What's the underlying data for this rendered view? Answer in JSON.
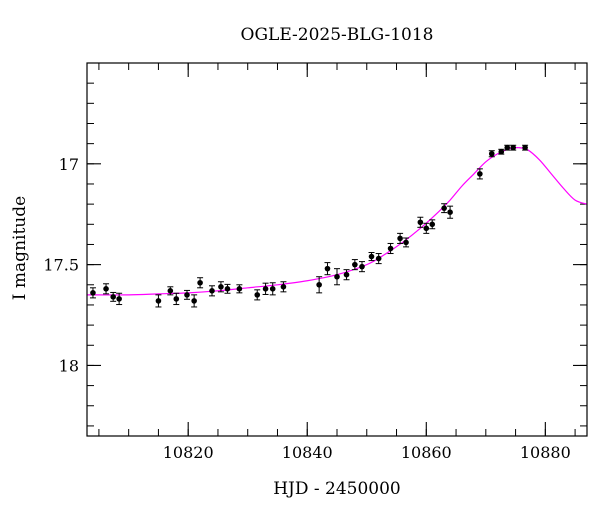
{
  "chart_data": {
    "type": "scatter",
    "title": "OGLE-2025-BLG-1018",
    "xlabel": "HJD - 2450000",
    "ylabel": "I magnitude",
    "xlim": [
      10803,
      10887
    ],
    "ylim": [
      18.35,
      16.5
    ],
    "y_inverted": true,
    "x_ticks": [
      10820,
      10840,
      10860,
      10880
    ],
    "x_tick_labels": [
      "10820",
      "10840",
      "10860",
      "10880"
    ],
    "x_minor_step": 5,
    "y_ticks": [
      17,
      17.5,
      18
    ],
    "y_tick_labels": [
      "17",
      "17.5",
      "18"
    ],
    "y_minor_step": 0.1,
    "grid": false,
    "colors": {
      "data": "#000000",
      "model": "#ff00ff",
      "frame": "#000000"
    },
    "series": [
      {
        "kind": "points-with-errorbars",
        "points": [
          {
            "x": 10804.0,
            "y": 17.64,
            "err": 0.025
          },
          {
            "x": 10806.2,
            "y": 17.62,
            "err": 0.025
          },
          {
            "x": 10807.4,
            "y": 17.66,
            "err": 0.022
          },
          {
            "x": 10808.4,
            "y": 17.67,
            "err": 0.028
          },
          {
            "x": 10815.0,
            "y": 17.68,
            "err": 0.03
          },
          {
            "x": 10817.0,
            "y": 17.63,
            "err": 0.02
          },
          {
            "x": 10818.0,
            "y": 17.67,
            "err": 0.028
          },
          {
            "x": 10819.8,
            "y": 17.65,
            "err": 0.022
          },
          {
            "x": 10821.0,
            "y": 17.68,
            "err": 0.03
          },
          {
            "x": 10822.0,
            "y": 17.59,
            "err": 0.025
          },
          {
            "x": 10824.0,
            "y": 17.63,
            "err": 0.025
          },
          {
            "x": 10825.5,
            "y": 17.61,
            "err": 0.025
          },
          {
            "x": 10826.6,
            "y": 17.62,
            "err": 0.022
          },
          {
            "x": 10828.6,
            "y": 17.62,
            "err": 0.02
          },
          {
            "x": 10831.6,
            "y": 17.65,
            "err": 0.025
          },
          {
            "x": 10833.0,
            "y": 17.62,
            "err": 0.028
          },
          {
            "x": 10834.2,
            "y": 17.62,
            "err": 0.03
          },
          {
            "x": 10836.0,
            "y": 17.61,
            "err": 0.025
          },
          {
            "x": 10842.0,
            "y": 17.6,
            "err": 0.04
          },
          {
            "x": 10843.4,
            "y": 17.52,
            "err": 0.03
          },
          {
            "x": 10845.0,
            "y": 17.56,
            "err": 0.04
          },
          {
            "x": 10846.6,
            "y": 17.55,
            "err": 0.025
          },
          {
            "x": 10848.0,
            "y": 17.5,
            "err": 0.025
          },
          {
            "x": 10849.2,
            "y": 17.51,
            "err": 0.025
          },
          {
            "x": 10850.8,
            "y": 17.46,
            "err": 0.02
          },
          {
            "x": 10852.0,
            "y": 17.47,
            "err": 0.025
          },
          {
            "x": 10854.0,
            "y": 17.42,
            "err": 0.025
          },
          {
            "x": 10855.6,
            "y": 17.37,
            "err": 0.025
          },
          {
            "x": 10856.6,
            "y": 17.39,
            "err": 0.022
          },
          {
            "x": 10859.0,
            "y": 17.29,
            "err": 0.025
          },
          {
            "x": 10860.0,
            "y": 17.32,
            "err": 0.025
          },
          {
            "x": 10861.0,
            "y": 17.3,
            "err": 0.022
          },
          {
            "x": 10863.0,
            "y": 17.22,
            "err": 0.022
          },
          {
            "x": 10864.0,
            "y": 17.24,
            "err": 0.03
          },
          {
            "x": 10869.0,
            "y": 17.05,
            "err": 0.025
          },
          {
            "x": 10871.0,
            "y": 16.95,
            "err": 0.015
          },
          {
            "x": 10872.6,
            "y": 16.94,
            "err": 0.012
          },
          {
            "x": 10873.6,
            "y": 16.92,
            "err": 0.012
          },
          {
            "x": 10874.6,
            "y": 16.92,
            "err": 0.012
          },
          {
            "x": 10876.6,
            "y": 16.92,
            "err": 0.012
          }
        ]
      },
      {
        "kind": "model-curve",
        "x": [
          10803,
          10810,
          10815,
          10820,
          10825,
          10830,
          10835,
          10840,
          10845,
          10850,
          10853,
          10856,
          10859,
          10862,
          10864,
          10866,
          10868,
          10870,
          10872,
          10874,
          10875.5,
          10877,
          10879,
          10881,
          10883,
          10885,
          10887
        ],
        "y": [
          17.65,
          17.65,
          17.645,
          17.64,
          17.63,
          17.615,
          17.6,
          17.58,
          17.55,
          17.5,
          17.45,
          17.39,
          17.32,
          17.24,
          17.18,
          17.11,
          17.05,
          16.99,
          16.95,
          16.925,
          16.92,
          16.93,
          16.98,
          17.05,
          17.12,
          17.18,
          17.2
        ]
      }
    ]
  }
}
